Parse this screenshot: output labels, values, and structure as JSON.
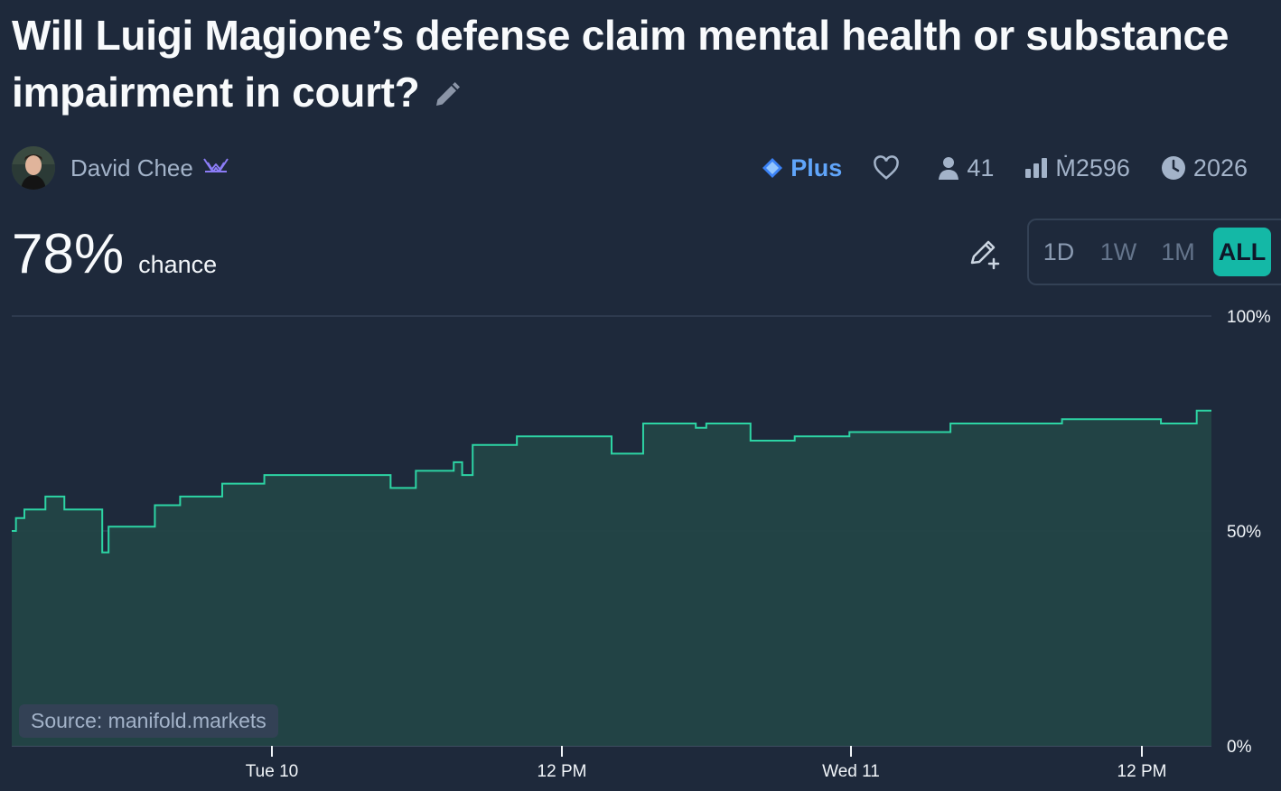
{
  "title": "Will Luigi Magione’s defense claim mental health or substance impairment in court?",
  "creator": {
    "name": "David Chee"
  },
  "stats": {
    "plus_label": "Plus",
    "traders": "41",
    "volume": "Ṁ2596",
    "close_year": "2026"
  },
  "probability": {
    "value": "78%",
    "label": "chance"
  },
  "time_range": {
    "options": [
      "1D",
      "1W",
      "1M",
      "ALL"
    ],
    "selected": "ALL"
  },
  "source": "Source: manifold.markets",
  "colors": {
    "accent": "#14b8a6",
    "line": "#2dd4a4",
    "fill": "#234446",
    "plus": "#60a5fa"
  },
  "chart_data": {
    "type": "area",
    "y_ticks": [
      "0%",
      "50%",
      "100%"
    ],
    "ylim": [
      0,
      100
    ],
    "x_ticks": [
      "Tue 10",
      "12 PM",
      "Wed 11",
      "12 PM"
    ],
    "grid": "horizontal",
    "series": [
      {
        "values": [
          [
            0.0,
            50
          ],
          [
            0.2,
            53
          ],
          [
            0.6,
            55
          ],
          [
            1.6,
            58
          ],
          [
            2.5,
            55
          ],
          [
            4.3,
            45
          ],
          [
            4.6,
            51
          ],
          [
            5.3,
            51
          ],
          [
            6.8,
            56
          ],
          [
            8.0,
            58
          ],
          [
            10.0,
            61
          ],
          [
            12.0,
            63
          ],
          [
            18.0,
            60
          ],
          [
            19.2,
            64
          ],
          [
            21.0,
            66
          ],
          [
            21.4,
            63
          ],
          [
            21.9,
            70
          ],
          [
            24.0,
            72
          ],
          [
            28.5,
            68
          ],
          [
            30.0,
            75
          ],
          [
            32.5,
            74
          ],
          [
            33.0,
            75
          ],
          [
            35.1,
            71
          ],
          [
            36.1,
            71
          ],
          [
            37.2,
            72
          ],
          [
            39.8,
            73
          ],
          [
            44.6,
            75
          ],
          [
            49.9,
            76
          ],
          [
            54.6,
            75
          ],
          [
            56.3,
            78
          ],
          [
            57.0,
            78
          ]
        ]
      }
    ]
  }
}
